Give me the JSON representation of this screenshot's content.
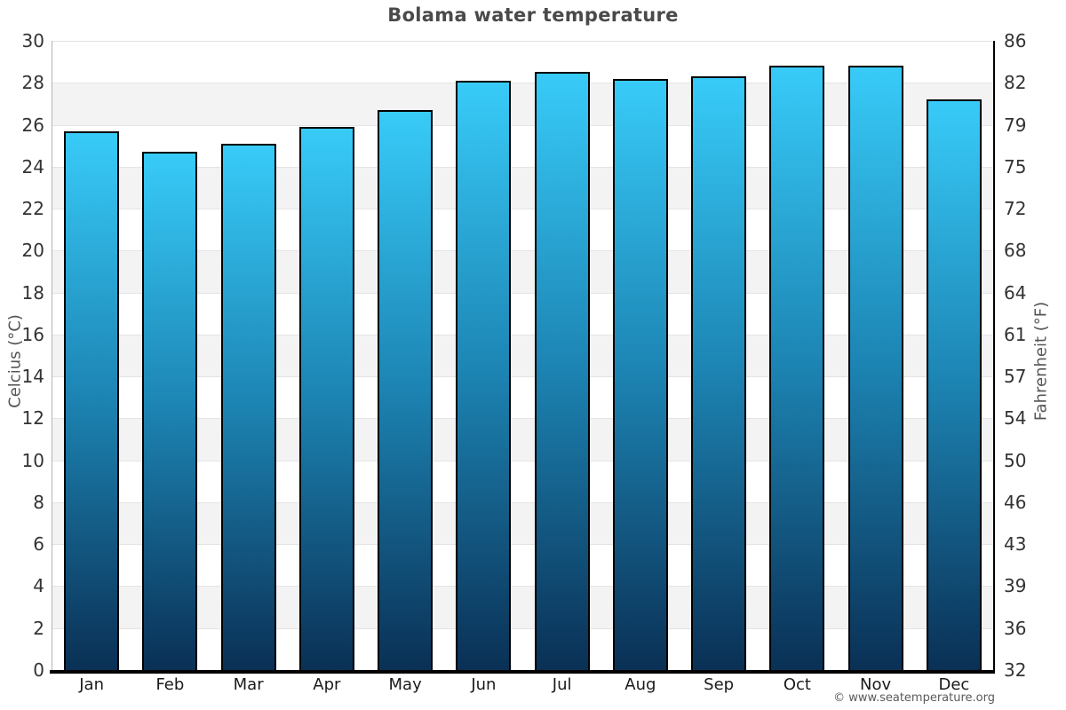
{
  "page": {
    "footer_text": "© www.seatemperature.org"
  },
  "chart_data": {
    "type": "bar",
    "title": "Bolama water temperature",
    "categories": [
      "Jan",
      "Feb",
      "Mar",
      "Apr",
      "May",
      "Jun",
      "Jul",
      "Aug",
      "Sep",
      "Oct",
      "Nov",
      "Dec"
    ],
    "values": [
      25.7,
      24.7,
      25.1,
      25.9,
      26.7,
      28.1,
      28.5,
      28.2,
      28.3,
      28.8,
      28.8,
      27.2
    ],
    "ylabel_left": "Celcius (°C)",
    "ylabel_right": "Fahrenheit (°F)",
    "xlabel": "",
    "ylim": [
      0,
      30
    ],
    "celsius_ticks": [
      0,
      2,
      4,
      6,
      8,
      10,
      12,
      14,
      16,
      18,
      20,
      22,
      24,
      26,
      28,
      30
    ],
    "fahrenheit_tick_labels": [
      "32",
      "36",
      "39",
      "43",
      "46",
      "50",
      "54",
      "57",
      "61",
      "64",
      "68",
      "72",
      "75",
      "79",
      "82",
      "86"
    ],
    "grid": "alternating horizontal bands every 2 degrees, white and light gray",
    "legend": "none",
    "colors": {
      "bar_top": "#38cbf8",
      "bar_mid": "#1d86b5",
      "bar_bottom": "#0a3055",
      "bar_border": "#000000",
      "band_gray": "#f3f3f3",
      "band_white": "#ffffff",
      "gridline": "#e4e4e4",
      "axis_left": "#b3b3b3",
      "axis_right": "#000000",
      "axis_bottom": "#000000",
      "title_text": "#4a4a4a",
      "tick_text": "#333333"
    }
  }
}
